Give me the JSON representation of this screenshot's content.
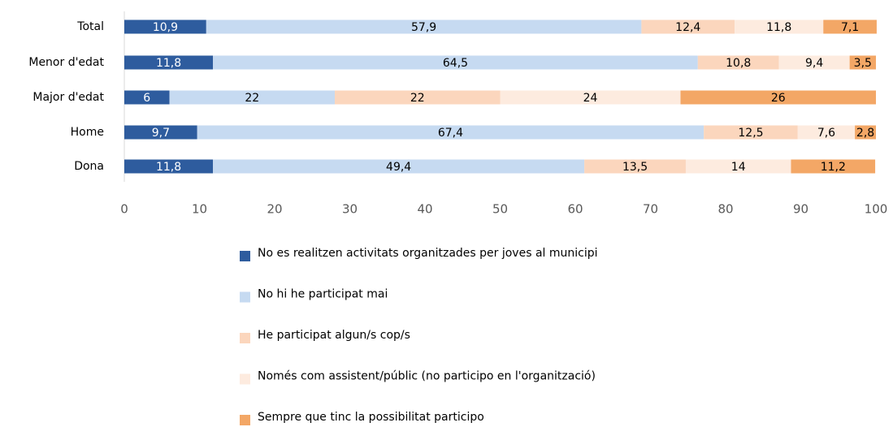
{
  "chart_data": {
    "type": "stacked-bar-horizontal",
    "categories": [
      "Total",
      "Menor d'edat",
      "Major d'edat",
      "Home",
      "Dona"
    ],
    "series": [
      {
        "name": "No es realitzen activitats organitzades per joves al municipi",
        "color": "#2e5c9e",
        "values": [
          10.9,
          11.8,
          6,
          9.7,
          11.8
        ],
        "value_labels": [
          "10,9",
          "11,8",
          "6",
          "9,7",
          "11,8"
        ]
      },
      {
        "name": "No hi he participat mai",
        "color": "#c6daf1",
        "values": [
          57.9,
          64.5,
          22,
          67.4,
          49.4
        ],
        "value_labels": [
          "57,9",
          "64,5",
          "22",
          "67,4",
          "49,4"
        ]
      },
      {
        "name": "He participat algun/s cop/s",
        "color": "#fbd6bd",
        "values": [
          12.4,
          10.8,
          22,
          12.5,
          13.5
        ],
        "value_labels": [
          "12,4",
          "10,8",
          "22",
          "12,5",
          "13,5"
        ]
      },
      {
        "name": "Només com assistent/públic (no participo en l'organització)",
        "color": "#fdebdf",
        "values": [
          11.8,
          9.4,
          24,
          7.6,
          14
        ],
        "value_labels": [
          "11,8",
          "9,4",
          "24",
          "7,6",
          "14"
        ]
      },
      {
        "name": "Sempre que tinc la possibilitat participo",
        "color": "#f3a766",
        "values": [
          7.1,
          3.5,
          26,
          2.8,
          11.2
        ],
        "value_labels": [
          "7,1",
          "3,5",
          "26",
          "2,8",
          "11,2"
        ]
      }
    ],
    "xlim": [
      0,
      100
    ],
    "xticks": [
      0,
      10,
      20,
      30,
      40,
      50,
      60,
      70,
      80,
      90,
      100
    ]
  }
}
